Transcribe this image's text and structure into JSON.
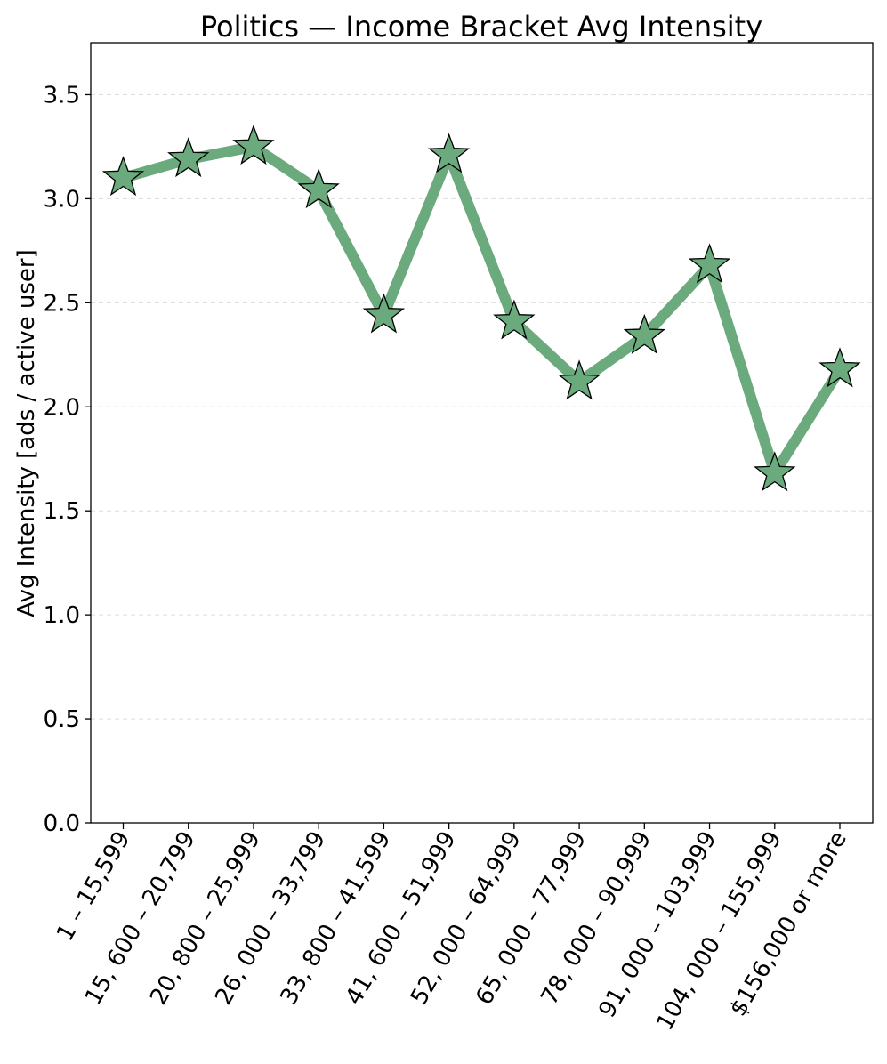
{
  "chart_data": {
    "type": "line",
    "title": "Politics — Income Bracket Avg Intensity",
    "xlabel": "",
    "ylabel": "Avg Intensity [ads / active user]",
    "categories": [
      "1 – 15,599",
      "15, 600 – 20,799",
      "20, 800 – 25,999",
      "26, 000 – 33,799",
      "33, 800 – 41,599",
      "41, 600 – 51,999",
      "52, 000 – 64,999",
      "65, 000 – 77,999",
      "78, 000 – 90,999",
      "91, 000 – 103,999",
      "104, 000 – 155,999",
      "$156,000 or more"
    ],
    "series": [
      {
        "values": [
          3.1,
          3.19,
          3.25,
          3.04,
          2.44,
          3.21,
          2.41,
          2.12,
          2.34,
          2.68,
          1.68,
          2.18
        ],
        "color": "#6aaa7c",
        "marker": "star"
      }
    ],
    "ylim": [
      0,
      3.75
    ],
    "yticks": [
      "0.0",
      "0.5",
      "1.0",
      "1.5",
      "2.0",
      "2.5",
      "3.0",
      "3.5"
    ],
    "grid": "horizontal-dashed",
    "legend": "none"
  }
}
